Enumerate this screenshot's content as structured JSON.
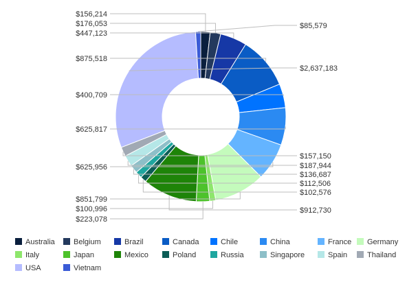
{
  "chart_data": {
    "type": "pie",
    "donut": true,
    "title": "",
    "legend_position": "bottom",
    "start_angle_deg": 0,
    "direction": "clockwise",
    "series": [
      {
        "name": "Australia",
        "value": 156214,
        "label": "$156,214",
        "color": "#0a1f3d"
      },
      {
        "name": "Belgium",
        "value": 176053,
        "label": "$176,053",
        "color": "#23395d"
      },
      {
        "name": "Brazil",
        "value": 447123,
        "label": "$447,123",
        "color": "#1638a6"
      },
      {
        "name": "Canada",
        "value": 875518,
        "label": "$875,518",
        "color": "#0a5cc5"
      },
      {
        "name": "Chile",
        "value": 400709,
        "label": "$400,709",
        "color": "#0073ff"
      },
      {
        "name": "China",
        "value": 625817,
        "label": "$625,817",
        "color": "#2b8af2"
      },
      {
        "name": "France",
        "value": 625956,
        "label": "$625,956",
        "color": "#64b4ff"
      },
      {
        "name": "Germany",
        "value": 851799,
        "label": "$851,799",
        "color": "#c4fbbc"
      },
      {
        "name": "Italy",
        "value": 100996,
        "label": "$100,996",
        "color": "#8ee66c"
      },
      {
        "name": "Japan",
        "value": 223078,
        "label": "$223,078",
        "color": "#4dc22b"
      },
      {
        "name": "Mexico",
        "value": 912730,
        "label": "$912,730",
        "color": "#1e8408"
      },
      {
        "name": "Poland",
        "value": 102576,
        "label": "$102,576",
        "color": "#0b5c55"
      },
      {
        "name": "Russia",
        "value": 112506,
        "label": "$112,506",
        "color": "#1ea69f"
      },
      {
        "name": "Singapore",
        "value": 136687,
        "label": "$136,687",
        "color": "#8dbfc8"
      },
      {
        "name": "Spain",
        "value": 187944,
        "label": "$187,944",
        "color": "#b5e7e7"
      },
      {
        "name": "Thailand",
        "value": 157150,
        "label": "$157,150",
        "color": "#a1a9b4"
      },
      {
        "name": "USA",
        "value": 2637183,
        "label": "$2,637,183",
        "color": "#b5bcff"
      },
      {
        "name": "Vietnam",
        "value": 85579,
        "label": "$85,579",
        "color": "#3a5bd6"
      }
    ]
  }
}
